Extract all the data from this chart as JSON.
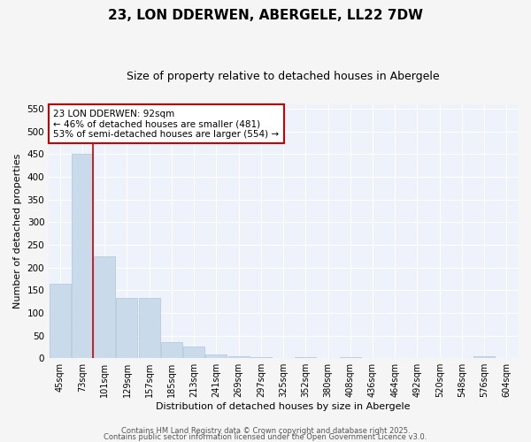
{
  "title_line1": "23, LON DDERWEN, ABERGELE, LL22 7DW",
  "title_line2": "Size of property relative to detached houses in Abergele",
  "xlabel": "Distribution of detached houses by size in Abergele",
  "ylabel": "Number of detached properties",
  "bar_labels": [
    "45sqm",
    "73sqm",
    "101sqm",
    "129sqm",
    "157sqm",
    "185sqm",
    "213sqm",
    "241sqm",
    "269sqm",
    "297sqm",
    "325sqm",
    "352sqm",
    "380sqm",
    "408sqm",
    "436sqm",
    "464sqm",
    "492sqm",
    "520sqm",
    "548sqm",
    "576sqm",
    "604sqm"
  ],
  "bar_values": [
    165,
    450,
    225,
    133,
    133,
    36,
    25,
    8,
    4,
    2,
    0,
    2,
    0,
    3,
    0,
    0,
    0,
    0,
    0,
    5,
    0
  ],
  "bar_color": "#c9daea",
  "bar_edge_color": "#b0c4d8",
  "red_line_x": 1.48,
  "ylim": [
    0,
    560
  ],
  "yticks": [
    0,
    50,
    100,
    150,
    200,
    250,
    300,
    350,
    400,
    450,
    500,
    550
  ],
  "annotation_text": "23 LON DDERWEN: 92sqm\n← 46% of detached houses are smaller (481)\n53% of semi-detached houses are larger (554) →",
  "annotation_box_facecolor": "#ffffff",
  "annotation_box_edgecolor": "#cc0000",
  "red_line_color": "#cc0000",
  "plot_bg_color": "#edf2fb",
  "fig_bg_color": "#f5f5f5",
  "grid_color": "#ffffff",
  "title_fontsize": 11,
  "subtitle_fontsize": 9,
  "tick_fontsize": 7,
  "axis_label_fontsize": 8,
  "annotation_fontsize": 7.5,
  "footer_line1": "Contains HM Land Registry data © Crown copyright and database right 2025.",
  "footer_line2": "Contains public sector information licensed under the Open Government Licence v3.0.",
  "footer_fontsize": 6
}
